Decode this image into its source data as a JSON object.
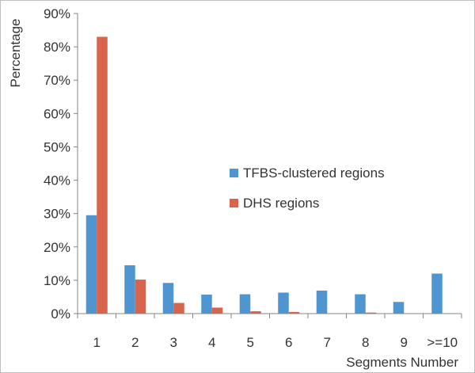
{
  "chart_data": {
    "type": "bar",
    "title": "",
    "xlabel": "Segments Number",
    "ylabel": "Percentage",
    "categories": [
      "1",
      "2",
      "3",
      "4",
      "5",
      "6",
      "7",
      "8",
      "9",
      ">=10"
    ],
    "series": [
      {
        "name": "TFBS-clustered regions",
        "color": "#4f95d0",
        "values": [
          29.5,
          14.5,
          9.2,
          5.7,
          5.8,
          6.3,
          6.9,
          5.8,
          3.5,
          12.0
        ]
      },
      {
        "name": "DHS regions",
        "color": "#d8644b",
        "values": [
          83.0,
          10.2,
          3.2,
          1.8,
          0.7,
          0.5,
          0.1,
          0.3,
          0.1,
          0.0
        ]
      }
    ],
    "ylim": [
      0,
      90
    ],
    "yticks": [
      0,
      10,
      20,
      30,
      40,
      50,
      60,
      70,
      80,
      90
    ],
    "ytick_labels": [
      "0%",
      "10%",
      "20%",
      "30%",
      "40%",
      "50%",
      "60%",
      "70%",
      "80%",
      "90%"
    ],
    "grid": false,
    "legend_position": "right"
  }
}
